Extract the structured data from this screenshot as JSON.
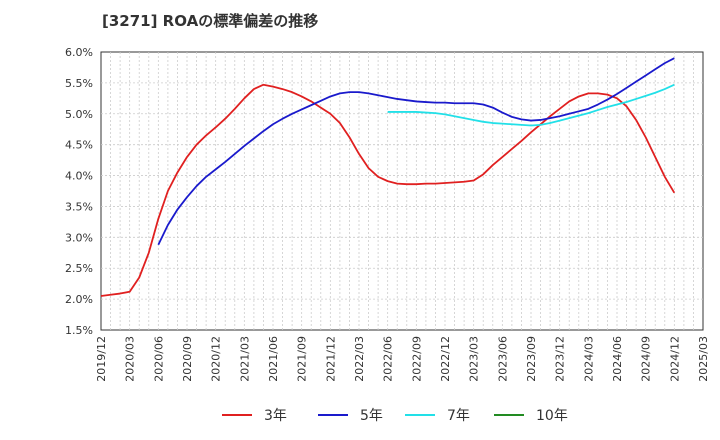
{
  "chart_data": {
    "type": "line",
    "title": "[3271]  ROAの標準偏差の推移",
    "xlabel": "",
    "ylabel": "",
    "x_ticks": [
      "2019/12",
      "2020/03",
      "2020/06",
      "2020/09",
      "2020/12",
      "2021/03",
      "2021/06",
      "2021/09",
      "2021/12",
      "2022/03",
      "2022/06",
      "2022/09",
      "2022/12",
      "2023/03",
      "2023/06",
      "2023/09",
      "2023/12",
      "2024/03",
      "2024/06",
      "2024/09",
      "2024/12",
      "2025/03"
    ],
    "y_ticks": [
      "1.5%",
      "2.0%",
      "2.5%",
      "3.0%",
      "3.5%",
      "4.0%",
      "4.5%",
      "5.0%",
      "5.5%",
      "6.0%"
    ],
    "ylim": [
      1.5,
      6.0
    ],
    "grid": true,
    "legend_position": "bottom",
    "series": [
      {
        "name": "3年",
        "color": "#e02020",
        "points": [
          [
            "2019/12",
            2.05
          ],
          [
            "2020/01",
            2.07
          ],
          [
            "2020/02",
            2.09
          ],
          [
            "2020/03",
            2.12
          ],
          [
            "2020/04",
            2.35
          ],
          [
            "2020/05",
            2.75
          ],
          [
            "2020/06",
            3.3
          ],
          [
            "2020/07",
            3.75
          ],
          [
            "2020/08",
            4.05
          ],
          [
            "2020/09",
            4.3
          ],
          [
            "2020/10",
            4.5
          ],
          [
            "2020/11",
            4.65
          ],
          [
            "2020/12",
            4.78
          ],
          [
            "2021/01",
            4.92
          ],
          [
            "2021/02",
            5.08
          ],
          [
            "2021/03",
            5.25
          ],
          [
            "2021/04",
            5.4
          ],
          [
            "2021/05",
            5.47
          ],
          [
            "2021/06",
            5.44
          ],
          [
            "2021/07",
            5.4
          ],
          [
            "2021/08",
            5.35
          ],
          [
            "2021/09",
            5.28
          ],
          [
            "2021/10",
            5.2
          ],
          [
            "2021/11",
            5.1
          ],
          [
            "2021/12",
            5.0
          ],
          [
            "2022/01",
            4.85
          ],
          [
            "2022/02",
            4.62
          ],
          [
            "2022/03",
            4.35
          ],
          [
            "2022/04",
            4.12
          ],
          [
            "2022/05",
            3.98
          ],
          [
            "2022/06",
            3.91
          ],
          [
            "2022/07",
            3.87
          ],
          [
            "2022/08",
            3.86
          ],
          [
            "2022/09",
            3.86
          ],
          [
            "2022/10",
            3.87
          ],
          [
            "2022/11",
            3.87
          ],
          [
            "2022/12",
            3.88
          ],
          [
            "2023/01",
            3.89
          ],
          [
            "2023/02",
            3.9
          ],
          [
            "2023/03",
            3.92
          ],
          [
            "2023/04",
            4.02
          ],
          [
            "2023/05",
            4.17
          ],
          [
            "2023/06",
            4.3
          ],
          [
            "2023/07",
            4.43
          ],
          [
            "2023/08",
            4.56
          ],
          [
            "2023/09",
            4.7
          ],
          [
            "2023/10",
            4.83
          ],
          [
            "2023/11",
            4.96
          ],
          [
            "2023/12",
            5.08
          ],
          [
            "2024/01",
            5.2
          ],
          [
            "2024/02",
            5.28
          ],
          [
            "2024/03",
            5.33
          ],
          [
            "2024/04",
            5.33
          ],
          [
            "2024/05",
            5.31
          ],
          [
            "2024/06",
            5.25
          ],
          [
            "2024/07",
            5.12
          ],
          [
            "2024/08",
            4.9
          ],
          [
            "2024/09",
            4.62
          ],
          [
            "2024/10",
            4.3
          ],
          [
            "2024/11",
            3.98
          ],
          [
            "2024/12",
            3.72
          ]
        ]
      },
      {
        "name": "5年",
        "color": "#1a1acc",
        "points": [
          [
            "2020/06",
            2.88
          ],
          [
            "2020/07",
            3.2
          ],
          [
            "2020/08",
            3.45
          ],
          [
            "2020/09",
            3.65
          ],
          [
            "2020/10",
            3.83
          ],
          [
            "2020/11",
            3.98
          ],
          [
            "2020/12",
            4.1
          ],
          [
            "2021/01",
            4.22
          ],
          [
            "2021/02",
            4.35
          ],
          [
            "2021/03",
            4.48
          ],
          [
            "2021/04",
            4.6
          ],
          [
            "2021/05",
            4.72
          ],
          [
            "2021/06",
            4.83
          ],
          [
            "2021/07",
            4.92
          ],
          [
            "2021/08",
            5.0
          ],
          [
            "2021/09",
            5.07
          ],
          [
            "2021/10",
            5.14
          ],
          [
            "2021/11",
            5.21
          ],
          [
            "2021/12",
            5.28
          ],
          [
            "2022/01",
            5.33
          ],
          [
            "2022/02",
            5.35
          ],
          [
            "2022/03",
            5.35
          ],
          [
            "2022/04",
            5.33
          ],
          [
            "2022/05",
            5.3
          ],
          [
            "2022/06",
            5.27
          ],
          [
            "2022/07",
            5.24
          ],
          [
            "2022/08",
            5.22
          ],
          [
            "2022/09",
            5.2
          ],
          [
            "2022/10",
            5.19
          ],
          [
            "2022/11",
            5.18
          ],
          [
            "2022/12",
            5.18
          ],
          [
            "2023/01",
            5.17
          ],
          [
            "2023/02",
            5.17
          ],
          [
            "2023/03",
            5.17
          ],
          [
            "2023/04",
            5.15
          ],
          [
            "2023/05",
            5.1
          ],
          [
            "2023/06",
            5.02
          ],
          [
            "2023/07",
            4.95
          ],
          [
            "2023/08",
            4.91
          ],
          [
            "2023/09",
            4.89
          ],
          [
            "2023/10",
            4.9
          ],
          [
            "2023/11",
            4.93
          ],
          [
            "2023/12",
            4.96
          ],
          [
            "2024/01",
            5.0
          ],
          [
            "2024/02",
            5.04
          ],
          [
            "2024/03",
            5.08
          ],
          [
            "2024/04",
            5.15
          ],
          [
            "2024/05",
            5.23
          ],
          [
            "2024/06",
            5.32
          ],
          [
            "2024/07",
            5.42
          ],
          [
            "2024/08",
            5.52
          ],
          [
            "2024/09",
            5.62
          ],
          [
            "2024/10",
            5.72
          ],
          [
            "2024/11",
            5.82
          ],
          [
            "2024/12",
            5.9
          ]
        ]
      },
      {
        "name": "7年",
        "color": "#22e0e8",
        "points": [
          [
            "2022/06",
            5.03
          ],
          [
            "2022/07",
            5.03
          ],
          [
            "2022/08",
            5.03
          ],
          [
            "2022/09",
            5.03
          ],
          [
            "2022/10",
            5.02
          ],
          [
            "2022/11",
            5.01
          ],
          [
            "2022/12",
            4.99
          ],
          [
            "2023/01",
            4.96
          ],
          [
            "2023/02",
            4.93
          ],
          [
            "2023/03",
            4.9
          ],
          [
            "2023/04",
            4.87
          ],
          [
            "2023/05",
            4.85
          ],
          [
            "2023/06",
            4.84
          ],
          [
            "2023/07",
            4.83
          ],
          [
            "2023/08",
            4.82
          ],
          [
            "2023/09",
            4.81
          ],
          [
            "2023/10",
            4.82
          ],
          [
            "2023/11",
            4.85
          ],
          [
            "2023/12",
            4.89
          ],
          [
            "2024/01",
            4.93
          ],
          [
            "2024/02",
            4.97
          ],
          [
            "2024/03",
            5.01
          ],
          [
            "2024/04",
            5.06
          ],
          [
            "2024/05",
            5.11
          ],
          [
            "2024/06",
            5.15
          ],
          [
            "2024/07",
            5.19
          ],
          [
            "2024/08",
            5.24
          ],
          [
            "2024/09",
            5.29
          ],
          [
            "2024/10",
            5.34
          ],
          [
            "2024/11",
            5.4
          ],
          [
            "2024/12",
            5.47
          ]
        ]
      },
      {
        "name": "10年",
        "color": "#228b22",
        "points": []
      }
    ]
  }
}
